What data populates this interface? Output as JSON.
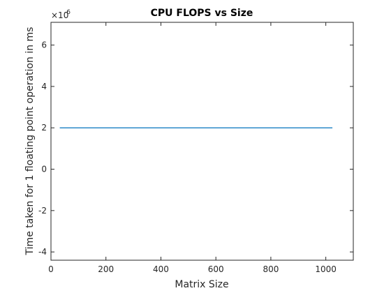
{
  "chart_data": {
    "type": "line",
    "title": "CPU FLOPS vs Size",
    "xlabel": "Matrix Size",
    "ylabel": "Time taken for 1 floating point operation in ms",
    "y_exponent_base": "×10",
    "y_exponent_power": "-6",
    "xlim": [
      0,
      1100
    ],
    "ylim": [
      -4.4,
      7.1
    ],
    "x_ticks": [
      0,
      200,
      400,
      600,
      800,
      1000
    ],
    "x_tick_labels": [
      "0",
      "200",
      "400",
      "600",
      "800",
      "1000"
    ],
    "y_ticks": [
      -4,
      -2,
      0,
      2,
      4,
      6
    ],
    "y_tick_labels": [
      "-4",
      "-2",
      "0",
      "2",
      "4",
      "6"
    ],
    "grid": false,
    "series": [
      {
        "color": "#0072bd",
        "x": [
          32,
          1024
        ],
        "y": [
          2.0,
          2.0
        ]
      }
    ]
  }
}
